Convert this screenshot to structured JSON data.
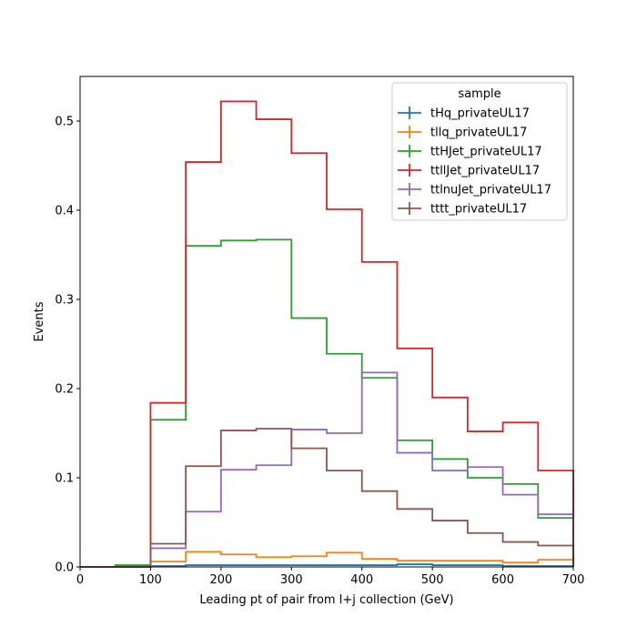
{
  "chart_data": {
    "type": "step-histogram",
    "xlabel": "Leading pt of pair from l+j collection (GeV)",
    "ylabel": "Events",
    "xlim": [
      0,
      700
    ],
    "ylim": [
      0,
      0.55
    ],
    "xticks": [
      0,
      100,
      200,
      300,
      400,
      500,
      600,
      700
    ],
    "yticks": [
      0.0,
      0.1,
      0.2,
      0.3,
      0.4,
      0.5
    ],
    "ytick_labels": [
      "0.0",
      "0.1",
      "0.2",
      "0.3",
      "0.4",
      "0.5"
    ],
    "grid": false,
    "legend": {
      "title": "sample",
      "placement": "top-right"
    },
    "bin_edges": [
      0,
      50,
      100,
      150,
      200,
      250,
      300,
      350,
      400,
      450,
      500,
      550,
      600,
      650,
      700
    ],
    "series": [
      {
        "name": "tHq_privateUL17",
        "color": "#1f77b4",
        "values": [
          0.0,
          0.0005,
          0.001,
          0.002,
          0.002,
          0.002,
          0.002,
          0.002,
          0.002,
          0.003,
          0.002,
          0.002,
          0.001,
          0.001
        ]
      },
      {
        "name": "tllq_privateUL17",
        "color": "#ff7f0e",
        "values": [
          0.0,
          0.001,
          0.006,
          0.017,
          0.014,
          0.011,
          0.012,
          0.016,
          0.009,
          0.007,
          0.007,
          0.007,
          0.005,
          0.008
        ]
      },
      {
        "name": "ttHJet_privateUL17",
        "color": "#2ca02c",
        "values": [
          0.0,
          0.002,
          0.165,
          0.36,
          0.366,
          0.367,
          0.279,
          0.239,
          0.212,
          0.142,
          0.121,
          0.1,
          0.093,
          0.055
        ]
      },
      {
        "name": "ttllJet_privateUL17",
        "color": "#d62728",
        "values": [
          0.0,
          0.0,
          0.184,
          0.454,
          0.522,
          0.502,
          0.464,
          0.401,
          0.342,
          0.245,
          0.19,
          0.152,
          0.162,
          0.108
        ]
      },
      {
        "name": "ttlnuJet_privateUL17",
        "color": "#9467bd",
        "values": [
          0.0,
          0.0,
          0.021,
          0.062,
          0.109,
          0.114,
          0.154,
          0.15,
          0.218,
          0.128,
          0.108,
          0.112,
          0.081,
          0.059
        ]
      },
      {
        "name": "tttt_privateUL17",
        "color": "#8c564b",
        "values": [
          0.0,
          0.0,
          0.026,
          0.113,
          0.153,
          0.155,
          0.133,
          0.108,
          0.085,
          0.065,
          0.052,
          0.038,
          0.028,
          0.024
        ]
      }
    ]
  }
}
